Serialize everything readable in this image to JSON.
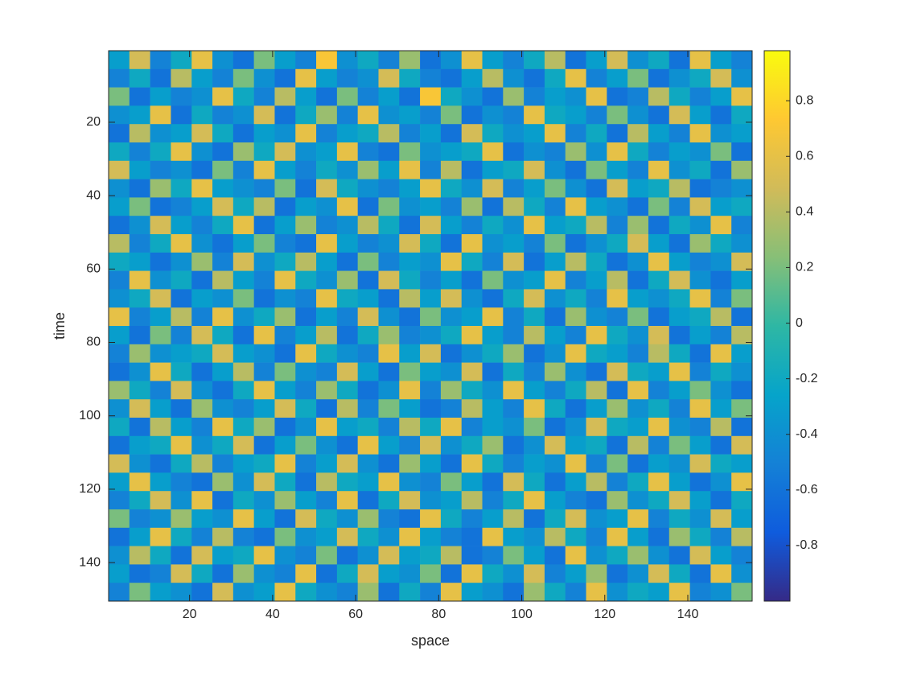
{
  "chart_data": {
    "type": "heatmap",
    "xlabel": "space",
    "ylabel": "time",
    "xlim": [
      0.5,
      155.5
    ],
    "ylim": [
      0.5,
      150.5
    ],
    "y_reversed": true,
    "xticks": [
      20,
      40,
      60,
      80,
      100,
      120,
      140
    ],
    "yticks": [
      20,
      40,
      60,
      80,
      100,
      120,
      140
    ],
    "clim": [
      -1,
      0.98
    ],
    "cticks": [
      -0.8,
      -0.6,
      -0.4,
      -0.2,
      0,
      0.2,
      0.4,
      0.6,
      0.8
    ],
    "colormap": [
      "#352a87",
      "#0f5cdd",
      "#1481d6",
      "#06a4ca",
      "#2eb7a4",
      "#87bf77",
      "#d1bb59",
      "#fec832",
      "#f9fb0e"
    ],
    "z": [
      [
        -0.3,
        0.5,
        -0.5,
        -0.2,
        0.6,
        -0.4,
        -0.6,
        0.2,
        -0.3,
        -0.5,
        0.7,
        -0.4,
        -0.2,
        -0.5,
        0.3,
        -0.6,
        -0.4,
        0.6,
        -0.3,
        -0.5,
        -0.2,
        0.4,
        -0.6,
        -0.3,
        0.5,
        -0.4,
        -0.2,
        -0.6,
        0.6,
        -0.3,
        -0.5
      ],
      [
        -0.5,
        -0.2,
        -0.6,
        0.4,
        -0.3,
        -0.5,
        0.2,
        -0.4,
        -0.6,
        0.6,
        -0.3,
        -0.5,
        -0.4,
        0.5,
        -0.2,
        -0.5,
        -0.6,
        -0.3,
        0.4,
        -0.4,
        -0.6,
        -0.2,
        0.6,
        -0.5,
        -0.3,
        0.2,
        -0.6,
        -0.4,
        -0.2,
        0.5,
        -0.4
      ],
      [
        0.2,
        -0.6,
        -0.3,
        -0.5,
        -0.4,
        0.6,
        -0.2,
        -0.5,
        0.4,
        -0.3,
        -0.6,
        0.2,
        -0.5,
        -0.3,
        -0.6,
        0.7,
        -0.2,
        -0.4,
        -0.6,
        0.3,
        -0.5,
        -0.3,
        -0.4,
        0.6,
        -0.6,
        -0.5,
        0.4,
        -0.2,
        -0.5,
        -0.3,
        0.6
      ],
      [
        -0.4,
        -0.3,
        0.6,
        -0.6,
        -0.2,
        -0.5,
        -0.4,
        0.5,
        -0.6,
        -0.2,
        0.3,
        -0.5,
        0.6,
        -0.4,
        -0.3,
        -0.5,
        0.2,
        -0.6,
        -0.4,
        -0.5,
        0.6,
        -0.2,
        -0.3,
        -0.5,
        0.2,
        -0.4,
        -0.6,
        0.5,
        -0.3,
        -0.6,
        -0.2
      ],
      [
        -0.6,
        0.4,
        -0.4,
        -0.3,
        0.5,
        -0.2,
        -0.6,
        -0.3,
        -0.4,
        0.6,
        -0.5,
        -0.3,
        -0.2,
        0.4,
        -0.5,
        -0.3,
        -0.6,
        0.5,
        -0.2,
        -0.4,
        -0.3,
        0.6,
        -0.5,
        -0.2,
        -0.6,
        0.4,
        -0.3,
        -0.5,
        0.6,
        -0.4,
        -0.3
      ],
      [
        -0.2,
        -0.5,
        -0.2,
        0.6,
        -0.4,
        -0.6,
        0.3,
        -0.2,
        0.5,
        -0.4,
        -0.3,
        0.6,
        -0.5,
        -0.6,
        0.2,
        -0.4,
        -0.3,
        -0.2,
        0.6,
        -0.6,
        -0.4,
        -0.5,
        0.3,
        -0.4,
        0.6,
        -0.2,
        -0.5,
        -0.3,
        -0.4,
        0.2,
        -0.6
      ],
      [
        0.5,
        -0.3,
        -0.5,
        -0.4,
        -0.6,
        0.2,
        -0.5,
        0.6,
        -0.3,
        -0.5,
        -0.2,
        -0.4,
        0.3,
        -0.3,
        0.6,
        -0.5,
        0.4,
        -0.6,
        -0.3,
        -0.2,
        0.5,
        -0.4,
        -0.6,
        0.2,
        -0.3,
        -0.5,
        0.6,
        -0.4,
        -0.2,
        -0.6,
        0.3
      ],
      [
        -0.4,
        -0.6,
        0.3,
        -0.2,
        0.6,
        -0.3,
        -0.4,
        -0.5,
        0.2,
        -0.6,
        0.5,
        -0.2,
        -0.4,
        -0.5,
        -0.3,
        0.6,
        -0.2,
        -0.4,
        0.5,
        -0.5,
        -0.3,
        0.2,
        -0.4,
        -0.6,
        0.5,
        -0.3,
        -0.2,
        0.4,
        -0.6,
        -0.5,
        -0.4
      ],
      [
        -0.3,
        0.2,
        -0.6,
        -0.5,
        -0.3,
        0.5,
        -0.2,
        0.4,
        -0.6,
        -0.3,
        -0.4,
        0.6,
        -0.6,
        0.2,
        -0.4,
        -0.3,
        -0.5,
        0.3,
        -0.6,
        0.4,
        -0.2,
        -0.5,
        0.6,
        -0.3,
        -0.4,
        -0.6,
        0.2,
        -0.5,
        0.5,
        -0.3,
        -0.2
      ],
      [
        -0.6,
        -0.4,
        0.5,
        -0.3,
        -0.5,
        -0.2,
        0.6,
        -0.6,
        -0.3,
        0.3,
        -0.5,
        -0.4,
        0.4,
        -0.2,
        -0.6,
        0.5,
        -0.3,
        -0.5,
        -0.2,
        -0.4,
        0.6,
        -0.3,
        -0.2,
        0.4,
        -0.5,
        0.3,
        -0.6,
        -0.2,
        -0.4,
        0.6,
        -0.5
      ],
      [
        0.4,
        -0.5,
        -0.2,
        0.6,
        -0.4,
        -0.6,
        -0.3,
        0.2,
        -0.5,
        -0.6,
        0.6,
        -0.3,
        -0.5,
        -0.4,
        0.5,
        -0.2,
        -0.6,
        0.6,
        -0.4,
        -0.3,
        -0.5,
        0.2,
        -0.6,
        -0.4,
        -0.2,
        0.5,
        -0.3,
        -0.6,
        0.3,
        -0.2,
        -0.4
      ],
      [
        -0.2,
        -0.3,
        -0.6,
        -0.4,
        0.3,
        -0.5,
        0.5,
        -0.4,
        -0.2,
        0.4,
        -0.3,
        -0.6,
        0.2,
        -0.5,
        -0.3,
        -0.4,
        0.6,
        -0.2,
        -0.5,
        0.5,
        -0.6,
        -0.3,
        0.4,
        -0.2,
        -0.6,
        -0.4,
        0.6,
        -0.3,
        -0.5,
        -0.4,
        0.5
      ],
      [
        -0.5,
        0.6,
        -0.4,
        -0.2,
        -0.6,
        0.4,
        -0.3,
        -0.5,
        0.6,
        -0.2,
        -0.4,
        0.3,
        -0.6,
        0.5,
        -0.2,
        -0.5,
        -0.3,
        -0.6,
        0.2,
        -0.4,
        -0.3,
        0.6,
        -0.5,
        -0.3,
        0.4,
        -0.6,
        -0.2,
        0.5,
        -0.4,
        -0.6,
        -0.3
      ],
      [
        -0.4,
        -0.2,
        0.5,
        -0.6,
        -0.3,
        -0.4,
        0.2,
        -0.6,
        -0.4,
        -0.5,
        0.6,
        -0.2,
        -0.3,
        -0.6,
        0.4,
        -0.3,
        0.5,
        -0.4,
        -0.6,
        -0.2,
        0.5,
        -0.4,
        -0.2,
        -0.5,
        0.6,
        -0.3,
        -0.4,
        -0.2,
        0.6,
        -0.5,
        0.2
      ],
      [
        0.6,
        -0.5,
        -0.3,
        0.4,
        -0.5,
        0.6,
        -0.4,
        -0.2,
        0.3,
        -0.6,
        -0.3,
        -0.5,
        0.5,
        -0.4,
        -0.6,
        0.2,
        -0.4,
        -0.3,
        0.6,
        -0.5,
        -0.2,
        -0.6,
        0.3,
        -0.4,
        -0.5,
        0.2,
        -0.6,
        -0.3,
        -0.2,
        0.4,
        -0.6
      ],
      [
        -0.3,
        -0.6,
        0.2,
        -0.5,
        0.5,
        -0.2,
        -0.6,
        0.6,
        -0.5,
        -0.3,
        0.4,
        -0.6,
        -0.2,
        0.3,
        -0.5,
        -0.4,
        -0.2,
        0.6,
        -0.3,
        -0.5,
        0.4,
        -0.3,
        -0.5,
        0.6,
        -0.2,
        -0.4,
        0.5,
        -0.6,
        -0.3,
        -0.5,
        0.4
      ],
      [
        -0.5,
        0.3,
        -0.4,
        -0.3,
        -0.2,
        0.5,
        -0.3,
        -0.4,
        -0.6,
        0.6,
        -0.2,
        -0.4,
        -0.5,
        0.6,
        -0.3,
        0.5,
        -0.6,
        -0.4,
        -0.2,
        0.3,
        -0.6,
        -0.4,
        0.6,
        -0.2,
        -0.3,
        -0.5,
        0.4,
        -0.2,
        -0.6,
        0.6,
        -0.3
      ],
      [
        -0.6,
        -0.4,
        0.6,
        -0.2,
        -0.6,
        -0.3,
        0.4,
        -0.5,
        0.2,
        -0.4,
        -0.5,
        0.5,
        -0.3,
        -0.6,
        0.2,
        -0.3,
        -0.4,
        0.5,
        -0.6,
        -0.2,
        -0.5,
        0.3,
        -0.4,
        -0.6,
        0.5,
        -0.2,
        -0.3,
        0.6,
        -0.5,
        -0.2,
        -0.4
      ],
      [
        0.3,
        -0.2,
        -0.5,
        0.5,
        -0.4,
        -0.6,
        -0.2,
        0.6,
        -0.3,
        -0.5,
        0.3,
        -0.2,
        -0.6,
        -0.4,
        0.6,
        -0.5,
        0.3,
        -0.2,
        -0.4,
        0.6,
        -0.3,
        -0.5,
        -0.2,
        0.4,
        -0.6,
        0.6,
        -0.5,
        -0.3,
        0.2,
        -0.4,
        -0.6
      ],
      [
        -0.4,
        0.5,
        -0.3,
        -0.6,
        0.3,
        -0.4,
        -0.5,
        -0.3,
        0.5,
        -0.2,
        -0.6,
        0.4,
        -0.5,
        0.2,
        -0.3,
        -0.6,
        -0.5,
        0.4,
        -0.3,
        -0.5,
        0.6,
        -0.2,
        -0.6,
        -0.3,
        0.3,
        -0.4,
        -0.2,
        -0.5,
        0.6,
        -0.3,
        0.2
      ],
      [
        -0.2,
        -0.6,
        0.4,
        -0.3,
        -0.5,
        0.6,
        -0.2,
        0.3,
        -0.6,
        -0.4,
        0.6,
        -0.3,
        -0.2,
        -0.5,
        0.4,
        -0.2,
        0.6,
        -0.5,
        -0.3,
        -0.4,
        0.2,
        -0.6,
        -0.4,
        0.5,
        -0.2,
        -0.3,
        0.6,
        -0.4,
        -0.5,
        0.4,
        -0.6
      ],
      [
        -0.6,
        -0.3,
        -0.2,
        0.6,
        -0.4,
        -0.2,
        0.5,
        -0.6,
        -0.3,
        0.2,
        -0.4,
        -0.6,
        0.6,
        -0.3,
        -0.5,
        0.5,
        -0.4,
        -0.2,
        0.3,
        -0.6,
        -0.4,
        0.5,
        -0.3,
        -0.2,
        -0.6,
        0.4,
        -0.5,
        0.2,
        -0.3,
        -0.6,
        0.5
      ],
      [
        0.5,
        -0.4,
        -0.6,
        -0.2,
        0.4,
        -0.5,
        -0.3,
        -0.2,
        0.6,
        -0.5,
        -0.3,
        0.5,
        -0.4,
        -0.6,
        0.3,
        -0.3,
        -0.6,
        0.6,
        -0.2,
        -0.5,
        -0.3,
        -0.4,
        0.6,
        -0.5,
        0.2,
        -0.6,
        -0.3,
        -0.4,
        0.5,
        -0.2,
        -0.3
      ],
      [
        -0.3,
        0.6,
        -0.3,
        -0.5,
        -0.6,
        0.3,
        -0.4,
        0.5,
        -0.2,
        -0.6,
        0.4,
        -0.2,
        -0.3,
        0.6,
        -0.4,
        -0.5,
        0.2,
        -0.3,
        -0.6,
        0.5,
        -0.2,
        -0.6,
        -0.3,
        0.4,
        -0.5,
        -0.2,
        0.6,
        -0.3,
        -0.6,
        -0.4,
        0.6
      ],
      [
        -0.5,
        -0.2,
        0.5,
        -0.4,
        0.6,
        -0.6,
        -0.2,
        -0.4,
        0.3,
        -0.3,
        -0.5,
        0.6,
        -0.6,
        -0.2,
        0.5,
        -0.4,
        -0.3,
        0.4,
        -0.5,
        -0.2,
        0.6,
        -0.3,
        -0.5,
        -0.6,
        0.3,
        -0.4,
        -0.2,
        0.5,
        -0.3,
        -0.6,
        -0.2
      ],
      [
        0.2,
        -0.5,
        -0.4,
        0.3,
        -0.3,
        -0.4,
        0.6,
        -0.3,
        -0.6,
        0.5,
        -0.2,
        -0.4,
        0.3,
        -0.5,
        -0.6,
        0.6,
        -0.2,
        -0.5,
        -0.3,
        0.4,
        -0.6,
        -0.2,
        0.5,
        -0.4,
        -0.3,
        0.6,
        -0.5,
        -0.2,
        -0.4,
        0.5,
        -0.3
      ],
      [
        -0.6,
        -0.3,
        0.6,
        -0.2,
        -0.5,
        0.4,
        -0.5,
        -0.6,
        0.2,
        -0.4,
        -0.3,
        0.5,
        -0.2,
        -0.4,
        0.6,
        -0.3,
        -0.5,
        -0.6,
        0.6,
        -0.3,
        -0.4,
        0.4,
        -0.2,
        -0.5,
        0.6,
        -0.3,
        -0.6,
        0.3,
        -0.2,
        -0.5,
        0.4
      ],
      [
        -0.4,
        0.4,
        -0.2,
        -0.6,
        0.5,
        -0.3,
        -0.2,
        0.6,
        -0.4,
        -0.5,
        0.2,
        -0.6,
        -0.4,
        0.5,
        -0.3,
        -0.2,
        0.4,
        -0.6,
        -0.5,
        0.2,
        -0.3,
        -0.6,
        0.6,
        -0.4,
        -0.2,
        0.3,
        -0.4,
        -0.6,
        0.5,
        -0.3,
        -0.5
      ],
      [
        -0.3,
        -0.6,
        -0.5,
        0.5,
        -0.2,
        -0.6,
        0.3,
        -0.4,
        -0.5,
        0.6,
        -0.6,
        -0.2,
        0.5,
        -0.3,
        -0.4,
        0.2,
        -0.6,
        0.6,
        -0.2,
        -0.4,
        0.5,
        -0.5,
        -0.3,
        0.3,
        -0.6,
        -0.4,
        0.5,
        -0.2,
        -0.6,
        0.6,
        -0.4
      ],
      [
        -0.5,
        0.2,
        -0.3,
        -0.4,
        -0.6,
        0.5,
        -0.4,
        -0.3,
        0.6,
        -0.2,
        -0.4,
        -0.5,
        0.3,
        -0.6,
        -0.2,
        -0.5,
        0.6,
        -0.3,
        -0.4,
        -0.6,
        0.3,
        -0.2,
        -0.5,
        0.6,
        -0.4,
        -0.2,
        -0.3,
        0.6,
        -0.5,
        -0.4,
        0.2
      ]
    ]
  }
}
